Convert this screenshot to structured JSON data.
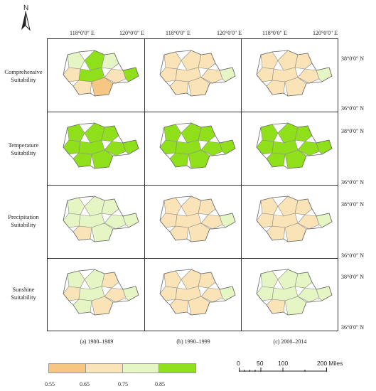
{
  "north_label": "N",
  "longitude_labels": [
    "118°0′0″ E",
    "120°0′0″ E"
  ],
  "latitude_labels": [
    "38°0′0″ N",
    "36°0′0″ N"
  ],
  "rows": [
    {
      "label_line1": "Comprehensive",
      "label_line2": "Suitability"
    },
    {
      "label_line1": "Temperature",
      "label_line2": "Suitability"
    },
    {
      "label_line1": "Precipitation",
      "label_line2": "Suitability"
    },
    {
      "label_line1": "Sunshine",
      "label_line2": "Suitability"
    }
  ],
  "columns": [
    "(a) 1980–1989",
    "(b) 1990–1999",
    "(c) 2000–2014"
  ],
  "legend": {
    "ticks": [
      "0.55",
      "0.65",
      "0.75",
      "0.85"
    ],
    "colors": [
      "#f5c783",
      "#fbe3b8",
      "#e6f5c4",
      "#8fe01a"
    ]
  },
  "scale": {
    "ticks": [
      "0",
      "50",
      "100",
      "200 Miles"
    ]
  },
  "panel_palette": [
    [
      "mixed",
      "cream",
      "cream"
    ],
    [
      "green",
      "green",
      "green"
    ],
    [
      "lightgreen",
      "cream",
      "cream"
    ],
    [
      "mixed2",
      "cream",
      "lightgreen"
    ]
  ]
}
